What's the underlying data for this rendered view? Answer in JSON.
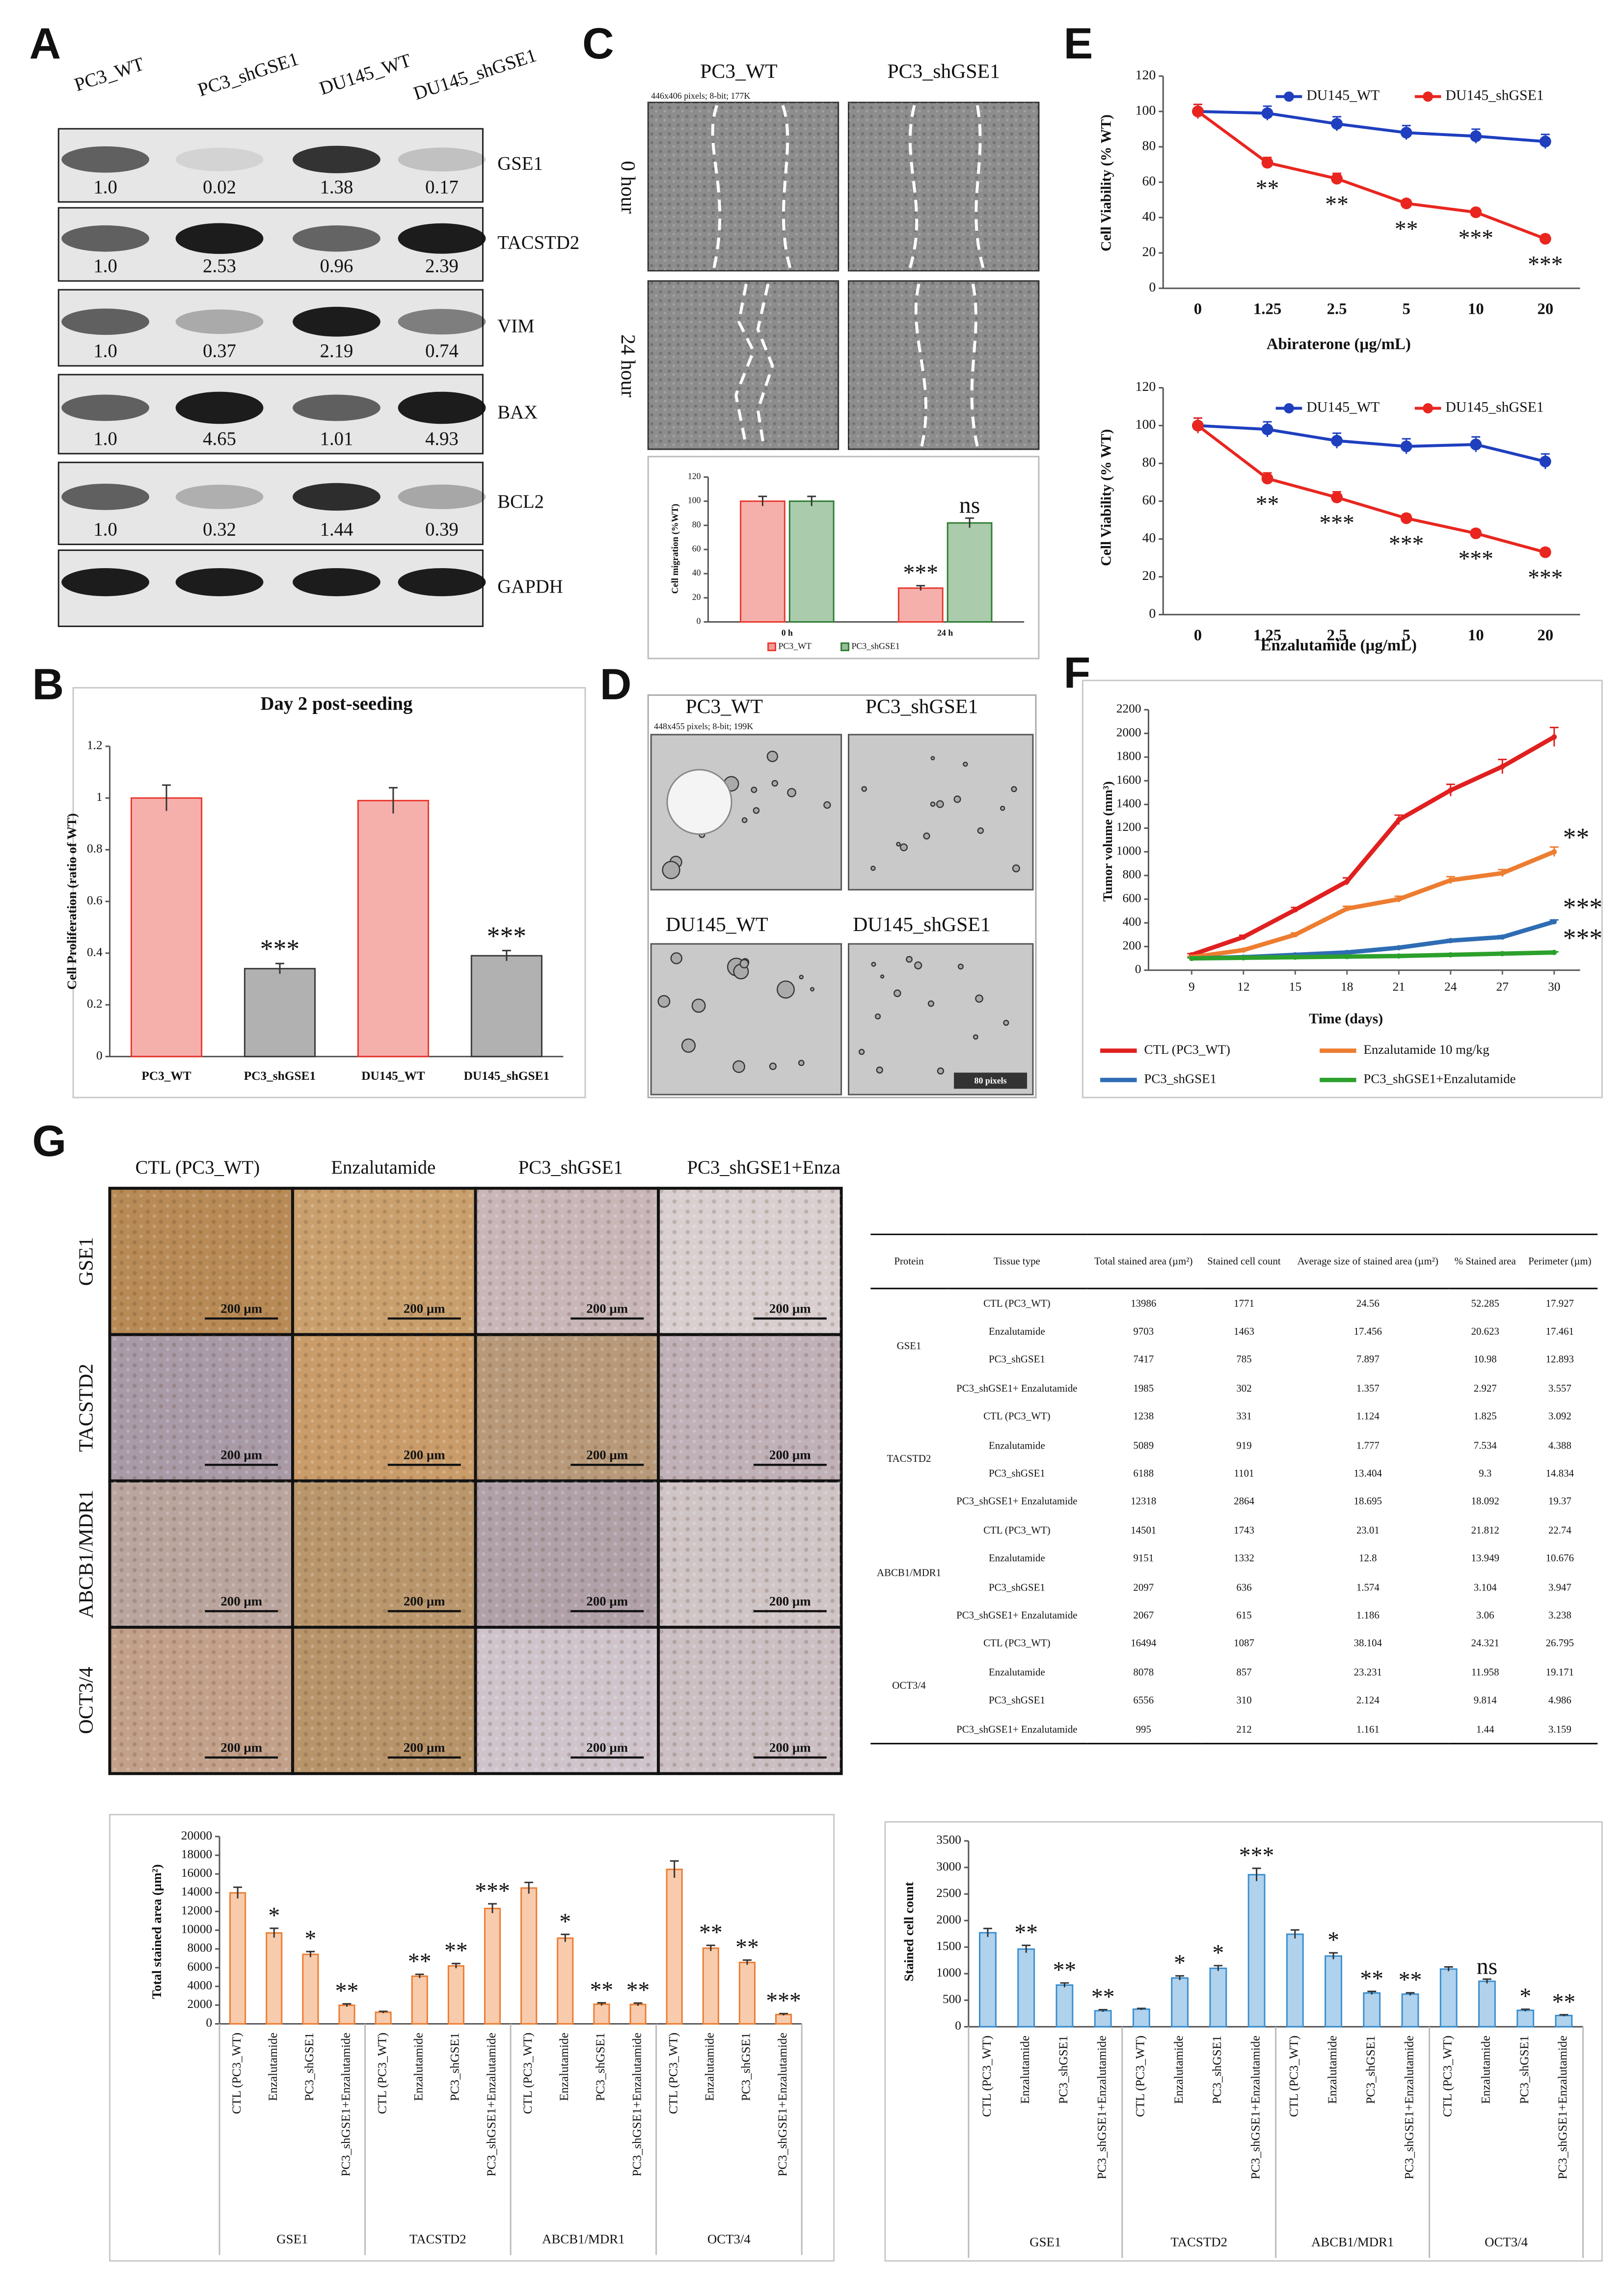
{
  "panel_labels": [
    "A",
    "B",
    "C",
    "D",
    "E",
    "F",
    "G"
  ],
  "blot": {
    "lanes": [
      "PC3_WT",
      "PC3_shGSE1",
      "DU145_WT",
      "DU145_shGSE1"
    ],
    "proteins": [
      {
        "name": "GSE1",
        "quantification": [
          "1.0",
          "0.02",
          "1.38",
          "0.17"
        ]
      },
      {
        "name": "TACSTD2",
        "quantification": [
          "1.0",
          "2.53",
          "0.96",
          "2.39"
        ]
      },
      {
        "name": "VIM",
        "quantification": [
          "1.0",
          "0.37",
          "2.19",
          "0.74"
        ]
      },
      {
        "name": "BAX",
        "quantification": [
          "1.0",
          "4.65",
          "1.01",
          "4.93"
        ]
      },
      {
        "name": "BCL2",
        "quantification": [
          "1.0",
          "0.32",
          "1.44",
          "0.39"
        ]
      },
      {
        "name": "GAPDH"
      }
    ]
  },
  "wound_healing": {
    "columns": [
      "PC3_WT",
      "PC3_shGSE1"
    ],
    "rows": [
      "0 hour",
      "24 hour"
    ],
    "image_info": "446x406 pixels; 8-bit; 177K"
  },
  "spheroid": {
    "labels": [
      "PC3_WT",
      "PC3_shGSE1",
      "DU145_WT",
      "DU145_shGSE1"
    ],
    "image_info": "448x455 pixels; 8-bit; 199K",
    "scale_bar": "80 pixels"
  },
  "ihc": {
    "columns": [
      "CTL (PC3_WT)",
      "Enzalutamide",
      "PC3_shGSE1",
      "PC3_shGSE1+Enza"
    ],
    "rows": [
      "GSE1",
      "TACSTD2",
      "ABCB1/MDR1",
      "OCT3/4"
    ],
    "scale_bar": "200 µm"
  },
  "table": {
    "headers": [
      "Protein",
      "Tissue type",
      "Total stained area (µm²)",
      "Stained cell count",
      "Average size of stained area (µm²)",
      "% Stained area",
      "Perimeter (µm)"
    ],
    "groups": [
      {
        "protein": "GSE1",
        "rows": [
          [
            "CTL (PC3_WT)",
            "13986",
            "1771",
            "24.56",
            "52.285",
            "17.927"
          ],
          [
            "Enzalutamide",
            "9703",
            "1463",
            "17.456",
            "20.623",
            "17.461"
          ],
          [
            "PC3_shGSE1",
            "7417",
            "785",
            "7.897",
            "10.98",
            "12.893"
          ],
          [
            "PC3_shGSE1+ Enzalutamide",
            "1985",
            "302",
            "1.357",
            "2.927",
            "3.557"
          ]
        ]
      },
      {
        "protein": "TACSTD2",
        "rows": [
          [
            "CTL (PC3_WT)",
            "1238",
            "331",
            "1.124",
            "1.825",
            "3.092"
          ],
          [
            "Enzalutamide",
            "5089",
            "919",
            "1.777",
            "7.534",
            "4.388"
          ],
          [
            "PC3_shGSE1",
            "6188",
            "1101",
            "13.404",
            "9.3",
            "14.834"
          ],
          [
            "PC3_shGSE1+ Enzalutamide",
            "12318",
            "2864",
            "18.695",
            "18.092",
            "19.37"
          ]
        ]
      },
      {
        "protein": "ABCB1/MDR1",
        "rows": [
          [
            "CTL (PC3_WT)",
            "14501",
            "1743",
            "23.01",
            "21.812",
            "22.74"
          ],
          [
            "Enzalutamide",
            "9151",
            "1332",
            "12.8",
            "13.949",
            "10.676"
          ],
          [
            "PC3_shGSE1",
            "2097",
            "636",
            "1.574",
            "3.104",
            "3.947"
          ],
          [
            "PC3_shGSE1+ Enzalutamide",
            "2067",
            "615",
            "1.186",
            "3.06",
            "3.238"
          ]
        ]
      },
      {
        "protein": "OCT3/4",
        "rows": [
          [
            "CTL (PC3_WT)",
            "16494",
            "1087",
            "38.104",
            "24.321",
            "26.795"
          ],
          [
            "Enzalutamide",
            "8078",
            "857",
            "23.231",
            "11.958",
            "19.171"
          ],
          [
            "PC3_shGSE1",
            "6556",
            "310",
            "2.124",
            "9.814",
            "4.986"
          ],
          [
            "PC3_shGSE1+ Enzalutamide",
            "995",
            "212",
            "1.161",
            "1.44",
            "3.159"
          ]
        ]
      }
    ]
  },
  "chart_data": [
    {
      "type": "bar",
      "title": "Day 2 post-seeding",
      "y_label": "Cell Proliferation (ratio of WT)",
      "categories": [
        "PC3_WT",
        "PC3_shGSE1",
        "DU145_WT",
        "DU145_shGSE1"
      ],
      "values": [
        1,
        0.34,
        0.99,
        0.39
      ],
      "errors": [
        0.05,
        0.02,
        0.05,
        0.02
      ],
      "colors": [
        "#e8392f",
        "#3c3c3c",
        "#e8392f",
        "#3c3c3c"
      ],
      "significance": [
        null,
        "***",
        null,
        "***"
      ],
      "ylim": [
        0,
        1.2
      ],
      "yticks": [
        0,
        0.2,
        0.4,
        0.6,
        0.8,
        1,
        1.2
      ]
    },
    {
      "type": "bar",
      "y_label": "Cell migration (%WT)",
      "categories": [
        "0 h",
        "24 h"
      ],
      "series": [
        {
          "name": "PC3_WT",
          "color": "#e8392f",
          "values": [
            100,
            28
          ],
          "errors": [
            4,
            2
          ],
          "significance": [
            null,
            "***"
          ]
        },
        {
          "name": "PC3_shGSE1",
          "color": "#2e7d32",
          "values": [
            100,
            82
          ],
          "errors": [
            4,
            4
          ],
          "significance": [
            null,
            "ns"
          ]
        }
      ],
      "ylim": [
        0,
        120
      ],
      "yticks": [
        0,
        20,
        40,
        60,
        80,
        100,
        120
      ],
      "legend": "bottom"
    },
    {
      "type": "line",
      "x_label": "Abiraterone (µg/mL)",
      "y_label": "Cell Viability (% WT)",
      "categories": [
        "0",
        "1.25",
        "2.5",
        "5",
        "10",
        "20"
      ],
      "series": [
        {
          "name": "DU145_WT",
          "color": "#1f3fbf",
          "values": [
            100,
            99,
            93,
            88,
            86,
            83
          ],
          "errors": [
            4,
            4,
            4,
            4,
            4,
            4
          ]
        },
        {
          "name": "DU145_shGSE1",
          "color": "#e8261f",
          "values": [
            100,
            71,
            62,
            48,
            43,
            28
          ],
          "errors": [
            4,
            3,
            3,
            2,
            2,
            2
          ],
          "significance": [
            null,
            "**",
            "**",
            "**",
            "***",
            "***"
          ]
        }
      ],
      "ylim": [
        0,
        120
      ],
      "yticks": [
        0,
        20,
        40,
        60,
        80,
        100,
        120
      ],
      "legend": "top"
    },
    {
      "type": "line",
      "x_label": "Enzalutamide (µg/mL)",
      "y_label": "Cell Viability (% WT)",
      "categories": [
        "0",
        "1.25",
        "2.5",
        "5",
        "10",
        "20"
      ],
      "series": [
        {
          "name": "DU145_WT",
          "color": "#1f3fbf",
          "values": [
            100,
            98,
            92,
            89,
            90,
            81
          ],
          "errors": [
            4,
            4,
            4,
            4,
            4,
            4
          ]
        },
        {
          "name": "DU145_shGSE1",
          "color": "#e8261f",
          "values": [
            100,
            72,
            62,
            51,
            43,
            33
          ],
          "errors": [
            4,
            3,
            3,
            2,
            2,
            2
          ],
          "significance": [
            null,
            "**",
            "***",
            "***",
            "***",
            "***"
          ]
        }
      ],
      "ylim": [
        0,
        120
      ],
      "yticks": [
        0,
        20,
        40,
        60,
        80,
        100,
        120
      ],
      "legend": "top"
    },
    {
      "type": "line",
      "x_label": "Time (days)",
      "y_label": "Tumor volume (mm³)",
      "x": [
        9,
        12,
        15,
        18,
        21,
        24,
        27,
        30
      ],
      "series": [
        {
          "name": "CTL (PC3_WT)",
          "color": "#e02020",
          "values": [
            130,
            280,
            510,
            750,
            1270,
            1520,
            1720,
            1970
          ],
          "errors": [
            10,
            15,
            20,
            30,
            40,
            50,
            60,
            80
          ]
        },
        {
          "name": "Enzalutamide 10 mg/kg",
          "color": "#ed7d31",
          "values": [
            110,
            170,
            300,
            520,
            600,
            760,
            820,
            1000
          ],
          "errors": [
            8,
            10,
            15,
            20,
            25,
            30,
            30,
            40
          ],
          "significance": "**"
        },
        {
          "name": "PC3_shGSE1",
          "color": "#2e6db4",
          "values": [
            100,
            110,
            130,
            150,
            190,
            250,
            280,
            410
          ],
          "errors": [
            5,
            5,
            8,
            8,
            10,
            10,
            12,
            15
          ],
          "significance": "***"
        },
        {
          "name": "PC3_shGSE1+Enzalutamide",
          "color": "#2ca02c",
          "values": [
            100,
            105,
            110,
            115,
            120,
            130,
            140,
            150
          ],
          "errors": [
            5,
            5,
            5,
            5,
            5,
            5,
            5,
            5
          ],
          "significance": "***"
        }
      ],
      "xlim": [
        6.5,
        31.5
      ],
      "xticks": [
        9,
        12,
        15,
        18,
        21,
        24,
        27,
        30
      ],
      "ylim": [
        0,
        2200
      ],
      "yticks": [
        0,
        200,
        400,
        600,
        800,
        1000,
        1200,
        1400,
        1600,
        1800,
        2000,
        2200
      ],
      "legend": "bottom"
    },
    {
      "type": "bar",
      "y_label": "Total stained area (µm²)",
      "categories": [
        "CTL (PC3_WT)",
        "Enzalutamide",
        "PC3_shGSE1",
        "PC3_shGSE1+Enzalutamide",
        "CTL (PC3_WT)",
        "Enzalutamide",
        "PC3_shGSE1",
        "PC3_shGSE1+Enzalutamide",
        "CTL (PC3_WT)",
        "Enzalutamide",
        "PC3_shGSE1",
        "PC3_shGSE1+Enzalutamide",
        "CTL (PC3_WT)",
        "Enzalutamide",
        "PC3_shGSE1",
        "PC3_shGSE1+Enzalutamide"
      ],
      "groups": [
        "GSE1",
        "TACSTD2",
        "ABCB1/MDR1",
        "OCT3/4"
      ],
      "values": [
        13986,
        9703,
        7417,
        1985,
        1238,
        5089,
        6188,
        12318,
        14501,
        9151,
        2097,
        2067,
        16494,
        8078,
        6556,
        995
      ],
      "errors": [
        600,
        500,
        300,
        150,
        100,
        200,
        250,
        500,
        600,
        400,
        150,
        150,
        900,
        300,
        250,
        100
      ],
      "color": "#ed7d31",
      "significance": [
        null,
        "*",
        "*",
        "**",
        null,
        "**",
        "**",
        "***",
        null,
        "*",
        "**",
        "**",
        null,
        "**",
        "**",
        "***"
      ],
      "ylim": [
        0,
        20000
      ],
      "yticks": [
        0,
        2000,
        4000,
        6000,
        8000,
        10000,
        12000,
        14000,
        16000,
        18000,
        20000
      ]
    },
    {
      "type": "bar",
      "y_label": "Stained cell count",
      "categories": [
        "CTL (PC3_WT)",
        "Enzalutamide",
        "PC3_shGSE1",
        "PC3_shGSE1+Enzalutamide",
        "CTL (PC3_WT)",
        "Enzalutamide",
        "PC3_shGSE1",
        "PC3_shGSE1+Enzalutamide",
        "CTL (PC3_WT)",
        "Enzalutamide",
        "PC3_shGSE1",
        "PC3_shGSE1+Enzalutamide",
        "CTL (PC3_WT)",
        "Enzalutamide",
        "PC3_shGSE1",
        "PC3_shGSE1+Enzalutamide"
      ],
      "groups": [
        "GSE1",
        "TACSTD2",
        "ABCB1/MDR1",
        "OCT3/4"
      ],
      "values": [
        1771,
        1463,
        785,
        302,
        331,
        919,
        1101,
        2864,
        1743,
        1332,
        636,
        615,
        1087,
        857,
        310,
        212
      ],
      "errors": [
        80,
        70,
        40,
        20,
        15,
        40,
        50,
        120,
        80,
        60,
        30,
        25,
        40,
        40,
        20,
        15
      ],
      "color": "#3a8fd0",
      "significance": [
        null,
        "**",
        "**",
        "**",
        null,
        "*",
        "*",
        "***",
        null,
        "*",
        "**",
        "**",
        null,
        "ns",
        "*",
        "**"
      ],
      "ylim": [
        0,
        3500
      ],
      "yticks": [
        0,
        500,
        1000,
        1500,
        2000,
        2500,
        3000,
        3500
      ]
    }
  ]
}
